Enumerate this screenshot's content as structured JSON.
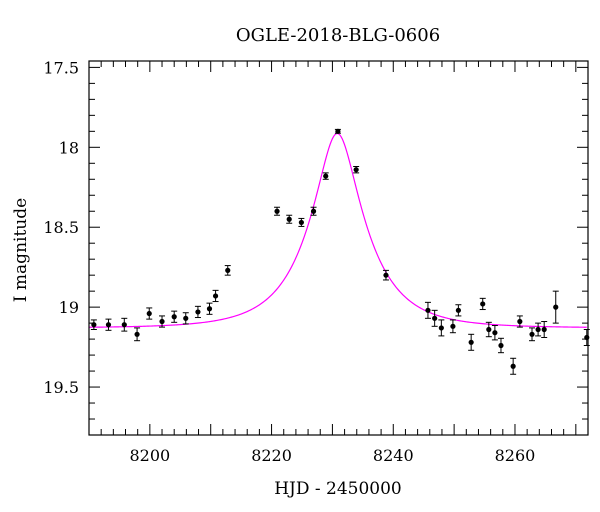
{
  "chart_data": {
    "type": "scatter",
    "title": "OGLE-2018-BLG-0606",
    "xlabel": "HJD - 2450000",
    "ylabel": "I magnitude",
    "xlim": [
      8190,
      8272
    ],
    "ylim": [
      19.8,
      17.46
    ],
    "y_inverted": true,
    "x_ticks": [
      8200,
      8220,
      8240,
      8260
    ],
    "x_tick_labels": [
      "8200",
      "8220",
      "8240",
      "8260"
    ],
    "y_ticks": [
      17.5,
      18,
      18.5,
      19,
      19.5
    ],
    "y_tick_labels": [
      "17.5",
      "18",
      "18.5",
      "19",
      "19.5"
    ],
    "grid": false,
    "legend": "none",
    "model_color": "#ff00ff",
    "point_color": "#000000",
    "model": {
      "t0": 8230.8,
      "u0": 0.34,
      "tE": 9.0,
      "base": 19.13
    },
    "points": [
      {
        "x": 8190.8,
        "y": 19.11,
        "err": 0.03
      },
      {
        "x": 8193.2,
        "y": 19.11,
        "err": 0.035
      },
      {
        "x": 8195.8,
        "y": 19.11,
        "err": 0.04
      },
      {
        "x": 8197.9,
        "y": 19.17,
        "err": 0.04
      },
      {
        "x": 8199.9,
        "y": 19.04,
        "err": 0.035
      },
      {
        "x": 8202.0,
        "y": 19.09,
        "err": 0.035
      },
      {
        "x": 8204.0,
        "y": 19.06,
        "err": 0.035
      },
      {
        "x": 8205.9,
        "y": 19.07,
        "err": 0.035
      },
      {
        "x": 8207.9,
        "y": 19.03,
        "err": 0.035
      },
      {
        "x": 8209.8,
        "y": 19.01,
        "err": 0.035
      },
      {
        "x": 8210.8,
        "y": 18.93,
        "err": 0.035
      },
      {
        "x": 8212.8,
        "y": 18.77,
        "err": 0.03
      },
      {
        "x": 8220.9,
        "y": 18.4,
        "err": 0.025
      },
      {
        "x": 8222.9,
        "y": 18.45,
        "err": 0.025
      },
      {
        "x": 8224.9,
        "y": 18.47,
        "err": 0.025
      },
      {
        "x": 8226.9,
        "y": 18.4,
        "err": 0.025
      },
      {
        "x": 8228.9,
        "y": 18.18,
        "err": 0.02
      },
      {
        "x": 8230.9,
        "y": 17.9,
        "err": 0.012
      },
      {
        "x": 8233.9,
        "y": 18.14,
        "err": 0.02
      },
      {
        "x": 8238.8,
        "y": 18.8,
        "err": 0.03
      },
      {
        "x": 8245.7,
        "y": 19.02,
        "err": 0.05
      },
      {
        "x": 8246.8,
        "y": 19.07,
        "err": 0.05
      },
      {
        "x": 8247.9,
        "y": 19.13,
        "err": 0.05
      },
      {
        "x": 8249.8,
        "y": 19.12,
        "err": 0.04
      },
      {
        "x": 8250.7,
        "y": 19.02,
        "err": 0.035
      },
      {
        "x": 8252.8,
        "y": 19.22,
        "err": 0.05
      },
      {
        "x": 8254.7,
        "y": 18.98,
        "err": 0.035
      },
      {
        "x": 8255.7,
        "y": 19.14,
        "err": 0.045
      },
      {
        "x": 8256.7,
        "y": 19.16,
        "err": 0.045
      },
      {
        "x": 8257.7,
        "y": 19.24,
        "err": 0.045
      },
      {
        "x": 8259.7,
        "y": 19.37,
        "err": 0.05
      },
      {
        "x": 8260.8,
        "y": 19.09,
        "err": 0.035
      },
      {
        "x": 8262.8,
        "y": 19.17,
        "err": 0.04
      },
      {
        "x": 8263.8,
        "y": 19.14,
        "err": 0.04
      },
      {
        "x": 8264.8,
        "y": 19.14,
        "err": 0.05
      },
      {
        "x": 8266.7,
        "y": 19.0,
        "err": 0.1
      },
      {
        "x": 8271.8,
        "y": 19.19,
        "err": 0.05
      }
    ]
  }
}
